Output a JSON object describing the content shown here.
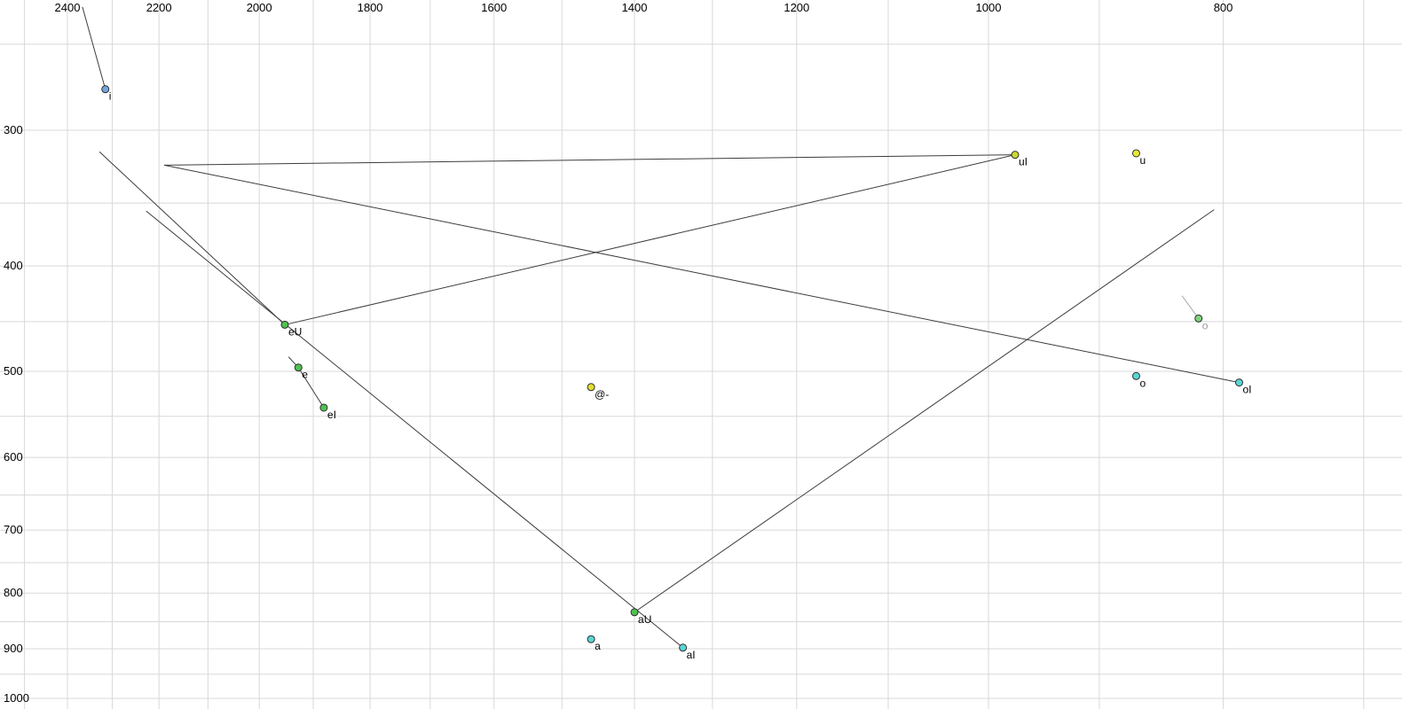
{
  "chart_data": {
    "type": "scatter",
    "title": "",
    "xlabel": "",
    "ylabel": "",
    "scale": "log-log",
    "axes": {
      "x": {
        "ticks": [
          2400,
          2200,
          2000,
          1800,
          1600,
          1400,
          1200,
          1000,
          800
        ],
        "grid_step": 100,
        "grid_min": 700,
        "grid_max": 2500,
        "reversed": true,
        "lim": [
          2560,
          675
        ]
      },
      "y": {
        "ticks": [
          300,
          400,
          500,
          600,
          700,
          800,
          900,
          1000
        ],
        "grid_step": 50,
        "grid_min": 250,
        "grid_max": 1000,
        "reversed": false,
        "lim": [
          228,
          1023
        ]
      }
    },
    "points": [
      {
        "label": "i",
        "f2": 2315,
        "f1": 275,
        "fill": "#6fa8dc",
        "label_color": "#000000"
      },
      {
        "label": "uI",
        "f2": 975,
        "f1": 316,
        "fill": "#c9d92e",
        "label_color": "#000000"
      },
      {
        "label": "u",
        "f2": 869,
        "f1": 315,
        "fill": "#e8e832",
        "label_color": "#000000"
      },
      {
        "label": "eU",
        "f2": 1952,
        "f1": 453,
        "fill": "#4fc24f",
        "label_color": "#000000"
      },
      {
        "label": "e",
        "f2": 1927,
        "f1": 496,
        "fill": "#4fc24f",
        "label_color": "#000000"
      },
      {
        "label": "eI",
        "f2": 1881,
        "f1": 540,
        "fill": "#4fc24f",
        "label_color": "#000000"
      },
      {
        "label": "@-",
        "f2": 1459,
        "f1": 517,
        "fill": "#e0e032",
        "label_color": "#000000"
      },
      {
        "label": "o",
        "f2": 819,
        "f1": 447,
        "fill": "#7ed47e",
        "label_color": "#9a9a9a"
      },
      {
        "label": "o",
        "f2": 869,
        "f1": 505,
        "fill": "#59d6d6",
        "label_color": "#000000"
      },
      {
        "label": "oI",
        "f2": 788,
        "f1": 512,
        "fill": "#59d6d6",
        "label_color": "#000000"
      },
      {
        "label": "aU",
        "f2": 1400,
        "f1": 833,
        "fill": "#4fc24f",
        "label_color": "#000000"
      },
      {
        "label": "a",
        "f2": 1459,
        "f1": 882,
        "fill": "#59d6d6",
        "label_color": "#000000"
      },
      {
        "label": "aI",
        "f2": 1337,
        "f1": 898,
        "fill": "#59d6d6",
        "label_color": "#000000"
      }
    ],
    "trajectories": [
      {
        "from": [
          2366,
          231
        ],
        "to": [
          2315,
          275
        ],
        "color": "#3c3c3c"
      },
      {
        "from": [
          2189,
          323
        ],
        "to": [
          975,
          316
        ],
        "color": "#3c3c3c"
      },
      {
        "from": [
          2189,
          323
        ],
        "to": [
          788,
          512
        ],
        "color": "#3c3c3c"
      },
      {
        "from": [
          1952,
          453
        ],
        "to": [
          975,
          316
        ],
        "color": "#3c3c3c"
      },
      {
        "from": [
          2328,
          314
        ],
        "to": [
          1952,
          453
        ],
        "color": "#3c3c3c"
      },
      {
        "from": [
          2227,
          356
        ],
        "to": [
          1337,
          898
        ],
        "color": "#3c3c3c"
      },
      {
        "from": [
          1400,
          833
        ],
        "to": [
          807,
          355
        ],
        "color": "#3c3c3c"
      },
      {
        "from": [
          832,
          426
        ],
        "to": [
          819,
          447
        ],
        "color": "#aaaaaa"
      },
      {
        "from": [
          1945,
          485
        ],
        "to": [
          1927,
          496
        ],
        "color": "#3c3c3c"
      },
      {
        "from": [
          1927,
          496
        ],
        "to": [
          1881,
          540
        ],
        "color": "#3c3c3c"
      }
    ],
    "style": {
      "grid_color": "#d8d8d8",
      "background": "#ffffff",
      "point_stroke": "#2f2f2f",
      "point_radius": 4
    }
  }
}
